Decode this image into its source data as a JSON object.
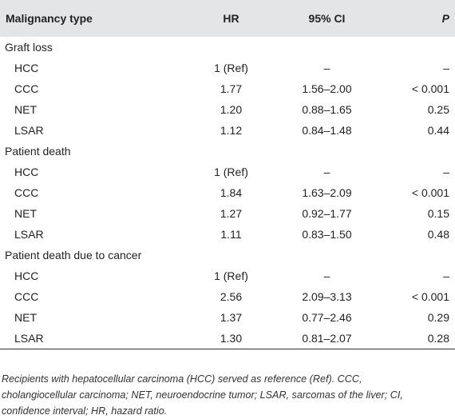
{
  "table": {
    "headers": [
      "Malignancy type",
      "HR",
      "95% CI",
      "P"
    ],
    "rows": [
      {
        "type": "group",
        "label": "Graft loss"
      },
      {
        "type": "item",
        "cells": [
          "HCC",
          "1 (Ref)",
          "–",
          "–"
        ]
      },
      {
        "type": "item",
        "cells": [
          "CCC",
          "1.77",
          "1.56–2.00",
          "< 0.001"
        ]
      },
      {
        "type": "item",
        "cells": [
          "NET",
          "1.20",
          "0.88–1.65",
          "0.25"
        ]
      },
      {
        "type": "item",
        "cells": [
          "LSAR",
          "1.12",
          "0.84–1.48",
          "0.44"
        ]
      },
      {
        "type": "group",
        "label": "Patient death"
      },
      {
        "type": "item",
        "cells": [
          "HCC",
          "1 (Ref)",
          "–",
          "–"
        ]
      },
      {
        "type": "item",
        "cells": [
          "CCC",
          "1.84",
          "1.63–2.09",
          "< 0.001"
        ]
      },
      {
        "type": "item",
        "cells": [
          "NET",
          "1.27",
          "0.92–1.77",
          "0.15"
        ]
      },
      {
        "type": "item",
        "cells": [
          "LSAR",
          "1.11",
          "0.83–1.50",
          "0.48"
        ]
      },
      {
        "type": "group",
        "label": "Patient death due to cancer"
      },
      {
        "type": "item",
        "cells": [
          "HCC",
          "1 (Ref)",
          "–",
          "–"
        ]
      },
      {
        "type": "item",
        "cells": [
          "CCC",
          "2.56",
          "2.09–3.13",
          "< 0.001"
        ]
      },
      {
        "type": "item",
        "cells": [
          "NET",
          "1.37",
          "0.77–2.46",
          "0.29"
        ]
      },
      {
        "type": "item",
        "cells": [
          "LSAR",
          "1.30",
          "0.81–2.07",
          "0.28"
        ]
      }
    ]
  },
  "footnote": "Recipients with hepatocellular carcinoma (HCC) served as reference (Ref). CCC, cholangiocellular carcinoma; NET, neuroendocrine tumor; LSAR, sarcomas of the liver; CI, confidence interval; HR, hazard ratio."
}
